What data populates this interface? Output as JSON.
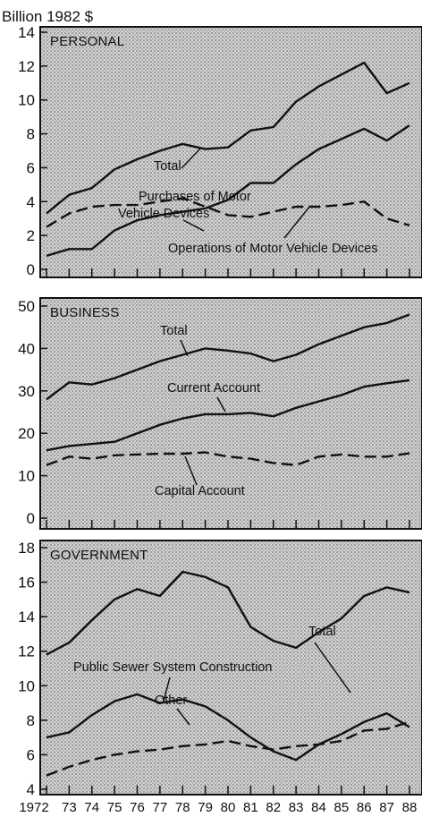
{
  "unit_label": "Billion 1982 $",
  "x_tick_labels": [
    "1972",
    "73",
    "74",
    "75",
    "76",
    "77",
    "78",
    "79",
    "80",
    "81",
    "82",
    "83",
    "84",
    "85",
    "86",
    "87",
    "88"
  ],
  "colors": {
    "panel_fill": "#c9c9c9",
    "line": "#111111",
    "background": "#ffffff"
  },
  "chart_data": [
    {
      "type": "line",
      "title": "PERSONAL",
      "x": [
        1972,
        1973,
        1974,
        1975,
        1976,
        1977,
        1978,
        1979,
        1980,
        1981,
        1982,
        1983,
        1984,
        1985,
        1986,
        1987,
        1988
      ],
      "ylim": [
        0,
        14
      ],
      "yticks": [
        0,
        2,
        4,
        6,
        8,
        10,
        12,
        14
      ],
      "grid": false,
      "series": [
        {
          "name": "Total",
          "style": "solid",
          "values": [
            3.3,
            4.4,
            4.8,
            5.9,
            6.5,
            7.0,
            7.4,
            7.1,
            7.2,
            8.2,
            8.4,
            9.9,
            10.8,
            11.5,
            12.2,
            10.4,
            11.0
          ]
        },
        {
          "name": "Purchases of Motor Vehicle Devices",
          "style": "solid",
          "values": [
            0.8,
            1.2,
            1.2,
            2.3,
            2.9,
            3.2,
            3.4,
            3.6,
            4.1,
            5.1,
            5.1,
            6.2,
            7.1,
            7.7,
            8.3,
            7.6,
            8.5
          ]
        },
        {
          "name": "Operations of Motor Vehicle Devices",
          "style": "dashed",
          "values": [
            2.5,
            3.3,
            3.7,
            3.8,
            3.8,
            4.0,
            4.2,
            3.7,
            3.2,
            3.1,
            3.4,
            3.7,
            3.7,
            3.8,
            4.0,
            3.0,
            2.6
          ]
        }
      ]
    },
    {
      "type": "line",
      "title": "BUSINESS",
      "x": [
        1972,
        1973,
        1974,
        1975,
        1976,
        1977,
        1978,
        1979,
        1980,
        1981,
        1982,
        1983,
        1984,
        1985,
        1986,
        1987,
        1988
      ],
      "ylim": [
        0,
        50
      ],
      "yticks": [
        0,
        10,
        20,
        30,
        40,
        50
      ],
      "grid": false,
      "series": [
        {
          "name": "Total",
          "style": "solid",
          "values": [
            28.0,
            32.0,
            31.5,
            33.0,
            35.0,
            37.0,
            38.5,
            40.0,
            39.5,
            38.8,
            37.0,
            38.5,
            41.0,
            43.0,
            45.0,
            46.0,
            48.0
          ]
        },
        {
          "name": "Current Account",
          "style": "solid",
          "values": [
            16.0,
            17.0,
            17.5,
            18.0,
            20.0,
            22.0,
            23.5,
            24.5,
            24.5,
            24.8,
            24.0,
            26.0,
            27.5,
            29.0,
            31.0,
            31.8,
            32.5
          ]
        },
        {
          "name": "Capital Account",
          "style": "dashed",
          "values": [
            12.5,
            14.5,
            14.0,
            14.8,
            15.0,
            15.2,
            15.2,
            15.5,
            14.5,
            14.0,
            13.0,
            12.5,
            14.5,
            15.0,
            14.5,
            14.5,
            15.3
          ]
        }
      ]
    },
    {
      "type": "line",
      "title": "GOVERNMENT",
      "x": [
        1972,
        1973,
        1974,
        1975,
        1976,
        1977,
        1978,
        1979,
        1980,
        1981,
        1982,
        1983,
        1984,
        1985,
        1986,
        1987,
        1988
      ],
      "ylim": [
        4,
        18
      ],
      "yticks": [
        4,
        6,
        8,
        10,
        12,
        14,
        16,
        18
      ],
      "grid": false,
      "series": [
        {
          "name": "Total",
          "style": "solid",
          "values": [
            11.8,
            12.5,
            13.8,
            15.0,
            15.6,
            15.2,
            16.6,
            16.3,
            15.7,
            13.4,
            12.6,
            12.2,
            13.1,
            13.9,
            15.2,
            15.7,
            15.4
          ]
        },
        {
          "name": "Public Sewer System Construction",
          "style": "solid",
          "values": [
            7.0,
            7.3,
            8.3,
            9.1,
            9.5,
            9.0,
            9.2,
            8.8,
            8.0,
            7.0,
            6.2,
            5.7,
            6.6,
            7.2,
            7.9,
            8.4,
            7.6
          ]
        },
        {
          "name": "Other",
          "style": "dashed",
          "values": [
            4.8,
            5.3,
            5.7,
            6.0,
            6.2,
            6.3,
            6.5,
            6.6,
            6.8,
            6.5,
            6.3,
            6.5,
            6.6,
            6.8,
            7.4,
            7.5,
            7.9
          ]
        }
      ]
    }
  ]
}
